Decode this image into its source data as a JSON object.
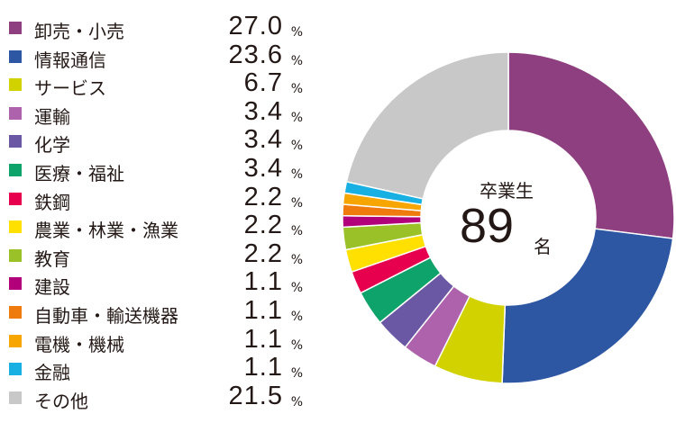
{
  "chart_data": {
    "type": "pie",
    "title": "",
    "center": {
      "title": "卒業生",
      "count": "89",
      "unit": "名"
    },
    "percent_symbol": "%",
    "categories": [
      "卸売・小売",
      "情報通信",
      "サービス",
      "運輸",
      "化学",
      "医療・福祉",
      "鉄鋼",
      "農業・林業・漁業",
      "教育",
      "建設",
      "自動車・輸送機器",
      "電機・機械",
      "金融",
      "その他"
    ],
    "values": [
      27.0,
      23.6,
      6.7,
      3.4,
      3.4,
      3.4,
      2.2,
      2.2,
      2.2,
      1.1,
      1.1,
      1.1,
      1.1,
      21.5
    ],
    "value_labels": [
      "27.0",
      "23.6",
      "6.7",
      "3.4",
      "3.4",
      "3.4",
      "2.2",
      "2.2",
      "2.2",
      "1.1",
      "1.1",
      "1.1",
      "1.1",
      "21.5"
    ],
    "colors": [
      "#8e3f7f",
      "#2d56a3",
      "#d2d200",
      "#ad62ab",
      "#6b58a5",
      "#0ea36a",
      "#e6004d",
      "#ffe000",
      "#9bc128",
      "#b2007a",
      "#ef7a0d",
      "#f7a500",
      "#18b0e2",
      "#c8c8c8"
    ],
    "legend_position": "left"
  }
}
